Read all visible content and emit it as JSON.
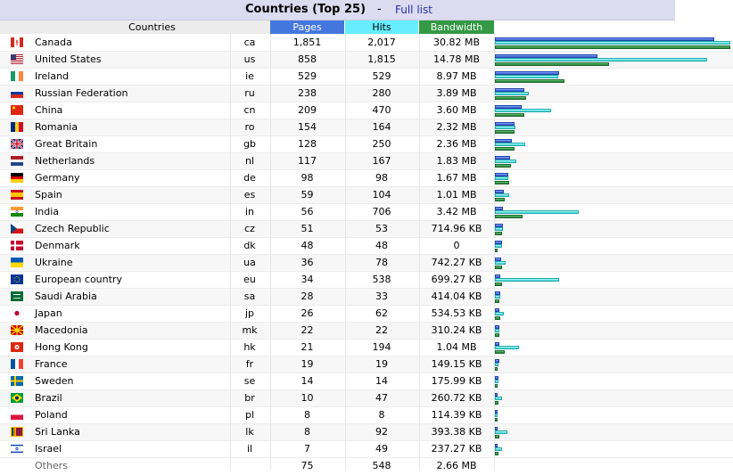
{
  "title": "Countries (Top 25)",
  "separator": "-",
  "full_list_label": "Full list",
  "headers": {
    "countries": "Countries",
    "pages": "Pages",
    "hits": "Hits",
    "bandwidth": "Bandwidth"
  },
  "max": {
    "pages": 1851,
    "hits": 2017,
    "bandwidth_kb": 31560
  },
  "rows": [
    {
      "country": "Canada",
      "code": "ca",
      "pages": "1,851",
      "hits": "2,017",
      "bandwidth": "30.82 MB",
      "p": 1851,
      "h": 2017,
      "b": 31560,
      "flag": "canada-flag-icon"
    },
    {
      "country": "United States",
      "code": "us",
      "pages": "858",
      "hits": "1,815",
      "bandwidth": "14.78 MB",
      "p": 858,
      "h": 1815,
      "b": 15135,
      "flag": "us-flag-icon"
    },
    {
      "country": "Ireland",
      "code": "ie",
      "pages": "529",
      "hits": "529",
      "bandwidth": "8.97 MB",
      "p": 529,
      "h": 529,
      "b": 9185,
      "flag": "ireland-flag-icon"
    },
    {
      "country": "Russian Federation",
      "code": "ru",
      "pages": "238",
      "hits": "280",
      "bandwidth": "3.89 MB",
      "p": 238,
      "h": 280,
      "b": 3983,
      "flag": "russia-flag-icon"
    },
    {
      "country": "China",
      "code": "cn",
      "pages": "209",
      "hits": "470",
      "bandwidth": "3.60 MB",
      "p": 209,
      "h": 470,
      "b": 3686,
      "flag": "china-flag-icon"
    },
    {
      "country": "Romania",
      "code": "ro",
      "pages": "154",
      "hits": "164",
      "bandwidth": "2.32 MB",
      "p": 154,
      "h": 164,
      "b": 2376,
      "flag": "romania-flag-icon"
    },
    {
      "country": "Great Britain",
      "code": "gb",
      "pages": "128",
      "hits": "250",
      "bandwidth": "2.36 MB",
      "p": 128,
      "h": 250,
      "b": 2417,
      "flag": "uk-flag-icon"
    },
    {
      "country": "Netherlands",
      "code": "nl",
      "pages": "117",
      "hits": "167",
      "bandwidth": "1.83 MB",
      "p": 117,
      "h": 167,
      "b": 1874,
      "flag": "netherlands-flag-icon"
    },
    {
      "country": "Germany",
      "code": "de",
      "pages": "98",
      "hits": "98",
      "bandwidth": "1.67 MB",
      "p": 98,
      "h": 98,
      "b": 1710,
      "flag": "germany-flag-icon"
    },
    {
      "country": "Spain",
      "code": "es",
      "pages": "59",
      "hits": "104",
      "bandwidth": "1.01 MB",
      "p": 59,
      "h": 104,
      "b": 1034,
      "flag": "spain-flag-icon"
    },
    {
      "country": "India",
      "code": "in",
      "pages": "56",
      "hits": "706",
      "bandwidth": "3.42 MB",
      "p": 56,
      "h": 706,
      "b": 3502,
      "flag": "india-flag-icon"
    },
    {
      "country": "Czech Republic",
      "code": "cz",
      "pages": "51",
      "hits": "53",
      "bandwidth": "714.96 KB",
      "p": 51,
      "h": 53,
      "b": 715,
      "flag": "czech-flag-icon"
    },
    {
      "country": "Denmark",
      "code": "dk",
      "pages": "48",
      "hits": "48",
      "bandwidth": "0",
      "p": 48,
      "h": 48,
      "b": 0,
      "flag": "denmark-flag-icon"
    },
    {
      "country": "Ukraine",
      "code": "ua",
      "pages": "36",
      "hits": "78",
      "bandwidth": "742.27 KB",
      "p": 36,
      "h": 78,
      "b": 742,
      "flag": "ukraine-flag-icon"
    },
    {
      "country": "European country",
      "code": "eu",
      "pages": "34",
      "hits": "538",
      "bandwidth": "699.27 KB",
      "p": 34,
      "h": 538,
      "b": 699,
      "flag": "eu-flag-icon"
    },
    {
      "country": "Saudi Arabia",
      "code": "sa",
      "pages": "28",
      "hits": "33",
      "bandwidth": "414.04 KB",
      "p": 28,
      "h": 33,
      "b": 414,
      "flag": "saudi-flag-icon"
    },
    {
      "country": "Japan",
      "code": "jp",
      "pages": "26",
      "hits": "62",
      "bandwidth": "534.53 KB",
      "p": 26,
      "h": 62,
      "b": 535,
      "flag": "japan-flag-icon"
    },
    {
      "country": "Macedonia",
      "code": "mk",
      "pages": "22",
      "hits": "22",
      "bandwidth": "310.24 KB",
      "p": 22,
      "h": 22,
      "b": 310,
      "flag": "macedonia-flag-icon"
    },
    {
      "country": "Hong Kong",
      "code": "hk",
      "pages": "21",
      "hits": "194",
      "bandwidth": "1.04 MB",
      "p": 21,
      "h": 194,
      "b": 1065,
      "flag": "hongkong-flag-icon"
    },
    {
      "country": "France",
      "code": "fr",
      "pages": "19",
      "hits": "19",
      "bandwidth": "149.15 KB",
      "p": 19,
      "h": 19,
      "b": 149,
      "flag": "france-flag-icon"
    },
    {
      "country": "Sweden",
      "code": "se",
      "pages": "14",
      "hits": "14",
      "bandwidth": "175.99 KB",
      "p": 14,
      "h": 14,
      "b": 176,
      "flag": "sweden-flag-icon"
    },
    {
      "country": "Brazil",
      "code": "br",
      "pages": "10",
      "hits": "47",
      "bandwidth": "260.72 KB",
      "p": 10,
      "h": 47,
      "b": 261,
      "flag": "brazil-flag-icon"
    },
    {
      "country": "Poland",
      "code": "pl",
      "pages": "8",
      "hits": "8",
      "bandwidth": "114.39 KB",
      "p": 8,
      "h": 8,
      "b": 114,
      "flag": "poland-flag-icon"
    },
    {
      "country": "Sri Lanka",
      "code": "lk",
      "pages": "8",
      "hits": "92",
      "bandwidth": "393.38 KB",
      "p": 8,
      "h": 92,
      "b": 393,
      "flag": "srilanka-flag-icon"
    },
    {
      "country": "Israel",
      "code": "il",
      "pages": "7",
      "hits": "49",
      "bandwidth": "237.27 KB",
      "p": 7,
      "h": 49,
      "b": 237,
      "flag": "israel-flag-icon"
    }
  ],
  "others": {
    "country": "Others",
    "pages": "75",
    "hits": "548",
    "bandwidth": "2.66 MB"
  }
}
